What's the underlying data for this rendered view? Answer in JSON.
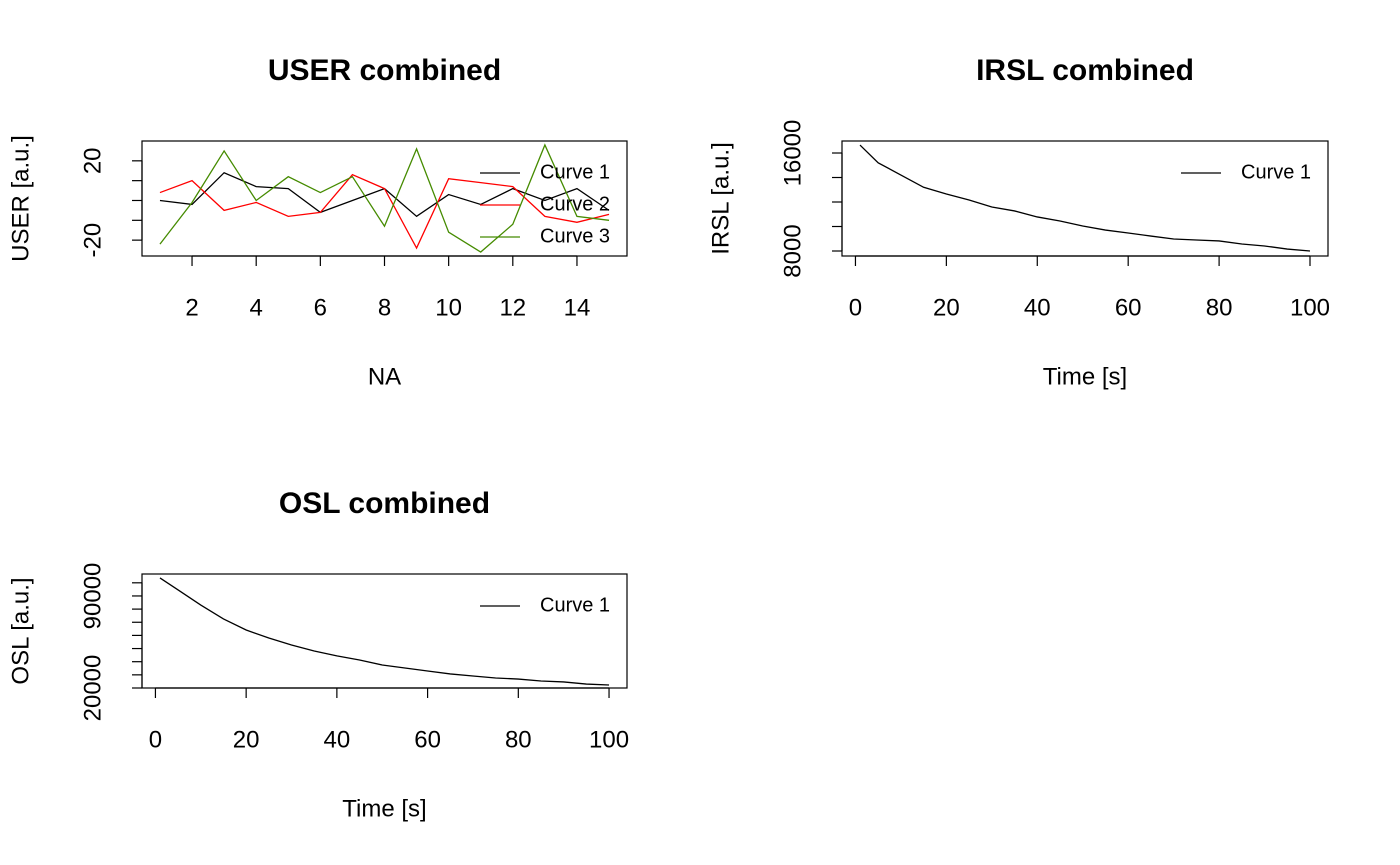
{
  "chart_data": [
    {
      "type": "line",
      "title": "USER combined",
      "xlabel": "NA",
      "ylabel": "USER [a.u.]",
      "x": [
        1,
        2,
        3,
        4,
        5,
        6,
        7,
        8,
        9,
        10,
        11,
        12,
        13,
        14,
        15
      ],
      "series": [
        {
          "name": "Curve 1",
          "color": "#000000",
          "values": [
            0,
            -2,
            14,
            7,
            6,
            -6,
            0,
            6,
            -8,
            3,
            -2,
            6,
            0,
            6,
            -5
          ]
        },
        {
          "name": "Curve 2",
          "color": "#ff0000",
          "values": [
            4,
            10,
            -5,
            -1,
            -8,
            -6,
            13,
            6,
            -24,
            11,
            9,
            7,
            -8,
            -11,
            -7
          ]
        },
        {
          "name": "Curve 3",
          "color": "#458b00",
          "values": [
            -22,
            -1,
            25,
            0,
            12,
            4,
            12,
            -13,
            26,
            -16,
            -26,
            -12,
            28,
            -8,
            -10
          ]
        }
      ],
      "xlim": [
        0.44,
        15.56
      ],
      "xticks": [
        2,
        4,
        6,
        8,
        10,
        12,
        14
      ],
      "ylim": [
        -28,
        30
      ],
      "yticks": [
        -20,
        20
      ],
      "yminor_ticks": [
        -10,
        0,
        10
      ],
      "legend": "topright"
    },
    {
      "type": "line",
      "title": "IRSL combined",
      "xlabel": "Time [s]",
      "ylabel": "IRSL [a.u.]",
      "x": [
        1,
        5,
        10,
        15,
        20,
        25,
        30,
        35,
        40,
        45,
        50,
        55,
        60,
        65,
        70,
        75,
        80,
        85,
        90,
        95,
        100
      ],
      "series": [
        {
          "name": "Curve 1",
          "color": "#000000",
          "values": [
            16650,
            15200,
            14200,
            13200,
            12650,
            12160,
            11590,
            11270,
            10780,
            10450,
            10040,
            9710,
            9470,
            9220,
            8980,
            8900,
            8820,
            8570,
            8410,
            8160,
            8000
          ]
        }
      ],
      "xlim": [
        -2.96,
        103.96
      ],
      "xticks": [
        0,
        20,
        40,
        60,
        80,
        100
      ],
      "ylim": [
        7592,
        16980
      ],
      "yticks": [
        8000,
        16000
      ],
      "yminor_ticks": [
        10000,
        12000,
        14000
      ],
      "legend": "topright"
    },
    {
      "type": "line",
      "title": "OSL combined",
      "xlabel": "Time [s]",
      "ylabel": "OSL [a.u.]",
      "x": [
        1,
        5,
        10,
        15,
        20,
        25,
        30,
        35,
        40,
        45,
        50,
        55,
        60,
        65,
        70,
        75,
        80,
        85,
        90,
        95,
        100
      ],
      "series": [
        {
          "name": "Curve 1",
          "color": "#000000",
          "values": [
            103700,
            94600,
            83100,
            72500,
            64100,
            58000,
            52700,
            48100,
            44400,
            41300,
            37500,
            35200,
            32900,
            30700,
            29100,
            27600,
            26800,
            25300,
            24600,
            23000,
            22300
          ]
        }
      ],
      "xlim": [
        -2.96,
        103.96
      ],
      "xticks": [
        0,
        20,
        40,
        60,
        80,
        100
      ],
      "ylim": [
        20000,
        106700
      ],
      "yticks": [
        20000,
        90000
      ],
      "yminor_ticks": [
        30000,
        40000,
        50000,
        60000,
        70000,
        80000,
        100000
      ],
      "legend": "topright"
    }
  ]
}
